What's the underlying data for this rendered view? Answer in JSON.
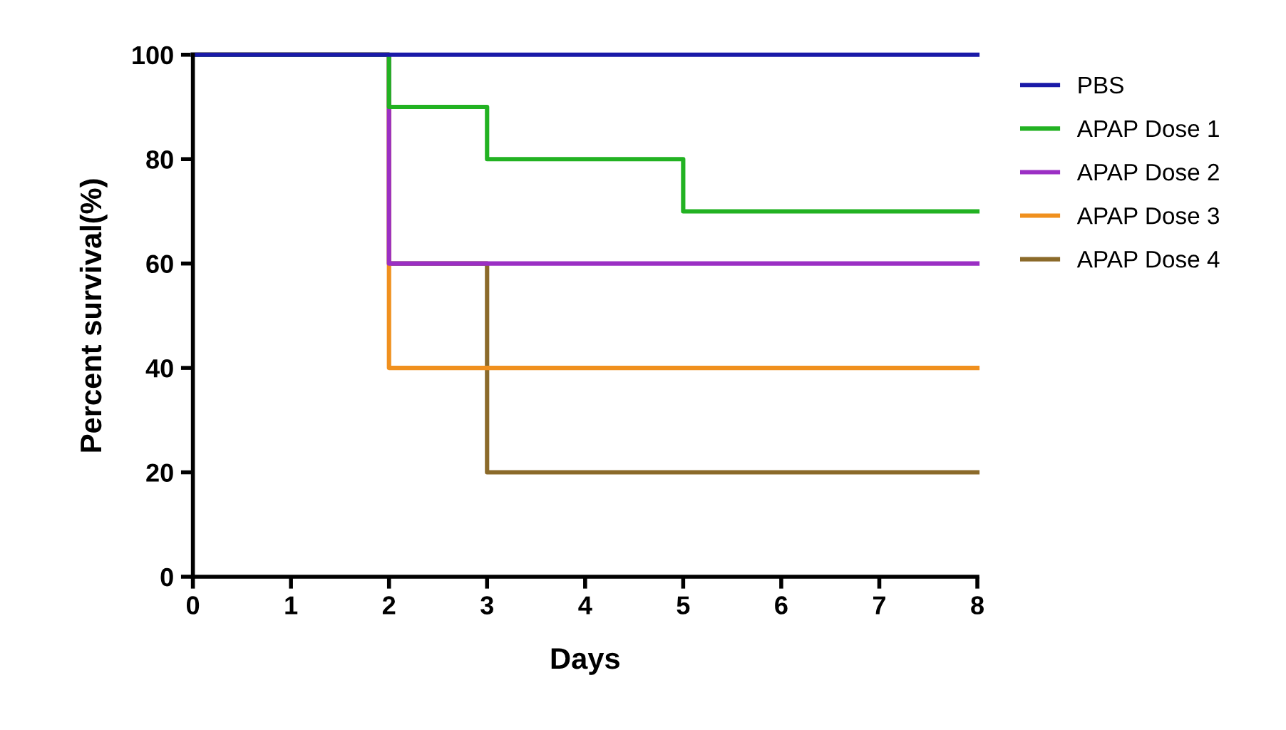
{
  "chart_data": {
    "type": "step",
    "xlabel": "Days",
    "ylabel": "Percent survival(%)",
    "xlim": [
      0,
      8
    ],
    "xticks": [
      0,
      1,
      2,
      3,
      4,
      5,
      6,
      7,
      8
    ],
    "ylim": [
      0,
      100
    ],
    "yticks": [
      0,
      20,
      40,
      60,
      80,
      100
    ],
    "grid": false,
    "legend": "right",
    "series": [
      {
        "name": "APAP Dose 4",
        "color": "#8b6a2a",
        "x": [
          0,
          2,
          3,
          8
        ],
        "values": [
          100,
          60,
          20,
          20
        ]
      },
      {
        "name": "APAP Dose 3",
        "color": "#f0901e",
        "x": [
          0,
          2,
          8
        ],
        "values": [
          100,
          40,
          40
        ]
      },
      {
        "name": "APAP Dose 2",
        "color": "#9b2fc4",
        "x": [
          0,
          2,
          8
        ],
        "values": [
          100,
          60,
          60
        ]
      },
      {
        "name": "APAP Dose 1",
        "color": "#22b222",
        "x": [
          0,
          2,
          3,
          5,
          8
        ],
        "values": [
          100,
          90,
          80,
          70,
          70
        ]
      },
      {
        "name": "PBS",
        "color": "#1a1aa8",
        "x": [
          0,
          8
        ],
        "values": [
          100,
          100
        ]
      }
    ]
  }
}
